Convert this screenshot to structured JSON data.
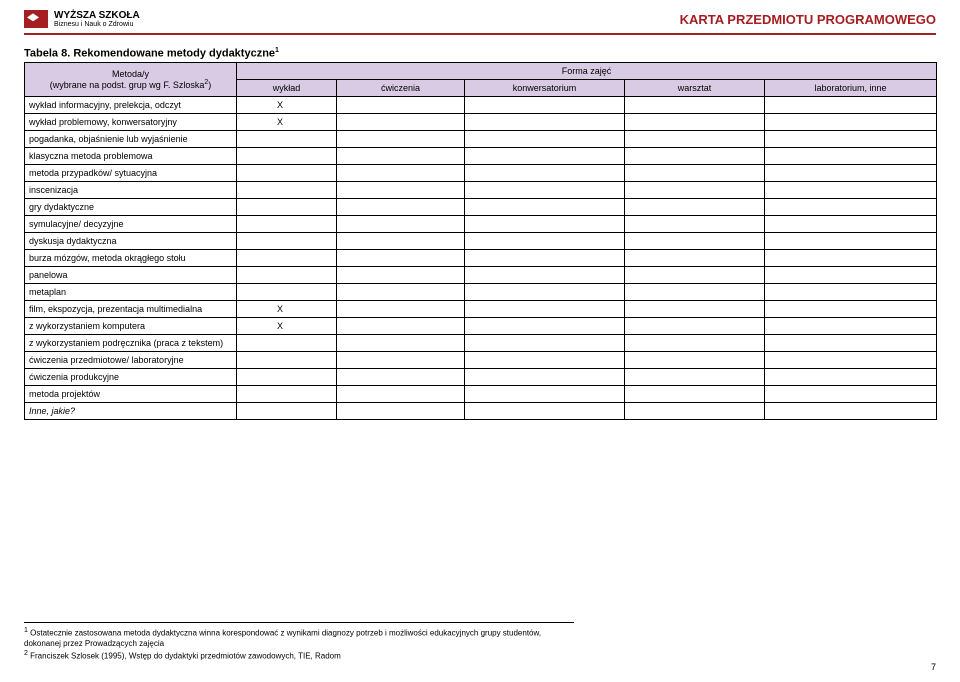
{
  "header": {
    "logo_line1": "WYŻSZA SZKOŁA",
    "logo_line2": "Biznesu i Nauk o Zdrowiu",
    "title_right": "KARTA PRZEDMIOTU PROGRAMOWEGO"
  },
  "table": {
    "caption": "Tabela 8. Rekomendowane metody dydaktyczne",
    "caption_sup": "1",
    "left_header_l1": "Metoda/y",
    "left_header_l2": "(wybrane na podst. grup wg F. Szloska",
    "left_header_sup": "2",
    "left_header_close": ")",
    "right_header_top": "Forma zajęć",
    "columns": [
      "wykład",
      "ćwiczenia",
      "konwersatorium",
      "warsztat",
      "laboratorium, inne"
    ],
    "rows": [
      {
        "label": "wykład informacyjny, prelekcja, odczyt",
        "cells": [
          "X",
          "",
          "",
          "",
          ""
        ]
      },
      {
        "label": "wykład problemowy, konwersatoryjny",
        "cells": [
          "X",
          "",
          "",
          "",
          ""
        ]
      },
      {
        "label": "pogadanka, objaśnienie lub wyjaśnienie",
        "cells": [
          "",
          "",
          "",
          "",
          ""
        ]
      },
      {
        "label": "klasyczna metoda problemowa",
        "cells": [
          "",
          "",
          "",
          "",
          ""
        ]
      },
      {
        "label": "metoda przypadków/ sytuacyjna",
        "cells": [
          "",
          "",
          "",
          "",
          ""
        ]
      },
      {
        "label": "inscenizacja",
        "cells": [
          "",
          "",
          "",
          "",
          ""
        ]
      },
      {
        "label": "gry dydaktyczne",
        "cells": [
          "",
          "",
          "",
          "",
          ""
        ]
      },
      {
        "label": "symulacyjne/ decyzyjne",
        "cells": [
          "",
          "",
          "",
          "",
          ""
        ]
      },
      {
        "label": "dyskusja dydaktyczna",
        "cells": [
          "",
          "",
          "",
          "",
          ""
        ]
      },
      {
        "label": "burza mózgów, metoda okrągłego stołu",
        "cells": [
          "",
          "",
          "",
          "",
          ""
        ]
      },
      {
        "label": "panelowa",
        "cells": [
          "",
          "",
          "",
          "",
          ""
        ]
      },
      {
        "label": "metaplan",
        "cells": [
          "",
          "",
          "",
          "",
          ""
        ]
      },
      {
        "label": "film, ekspozycja, prezentacja multimedialna",
        "cells": [
          "X",
          "",
          "",
          "",
          ""
        ]
      },
      {
        "label": "z wykorzystaniem komputera",
        "cells": [
          "X",
          "",
          "",
          "",
          ""
        ]
      },
      {
        "label": "z wykorzystaniem podręcznika (praca z tekstem)",
        "cells": [
          "",
          "",
          "",
          "",
          ""
        ]
      },
      {
        "label": "ćwiczenia przedmiotowe/ laboratoryjne",
        "cells": [
          "",
          "",
          "",
          "",
          ""
        ]
      },
      {
        "label": "ćwiczenia produkcyjne",
        "cells": [
          "",
          "",
          "",
          "",
          ""
        ]
      },
      {
        "label": "metoda projektów",
        "cells": [
          "",
          "",
          "",
          "",
          ""
        ]
      },
      {
        "label": "Inne, jakie?",
        "italic": true,
        "cells": [
          "",
          "",
          "",
          "",
          ""
        ]
      }
    ]
  },
  "footnotes": {
    "f1_sup": "1",
    "f1": " Ostatecznie zastosowana metoda dydaktyczna winna korespondować z wynikami diagnozy potrzeb i możliwości edukacyjnych grupy studentów, dokonanej przez Prowadzących zajęcia",
    "f2_sup": "2",
    "f2": " Franciszek Szlosek (1995), Wstęp do dydaktyki przedmiotów zawodowych, TIE, Radom"
  },
  "page_number": "7",
  "colors": {
    "accent": "#a41e22",
    "header_bg": "#d9cbe4",
    "border": "#000000",
    "text": "#000000",
    "bg": "#ffffff"
  }
}
